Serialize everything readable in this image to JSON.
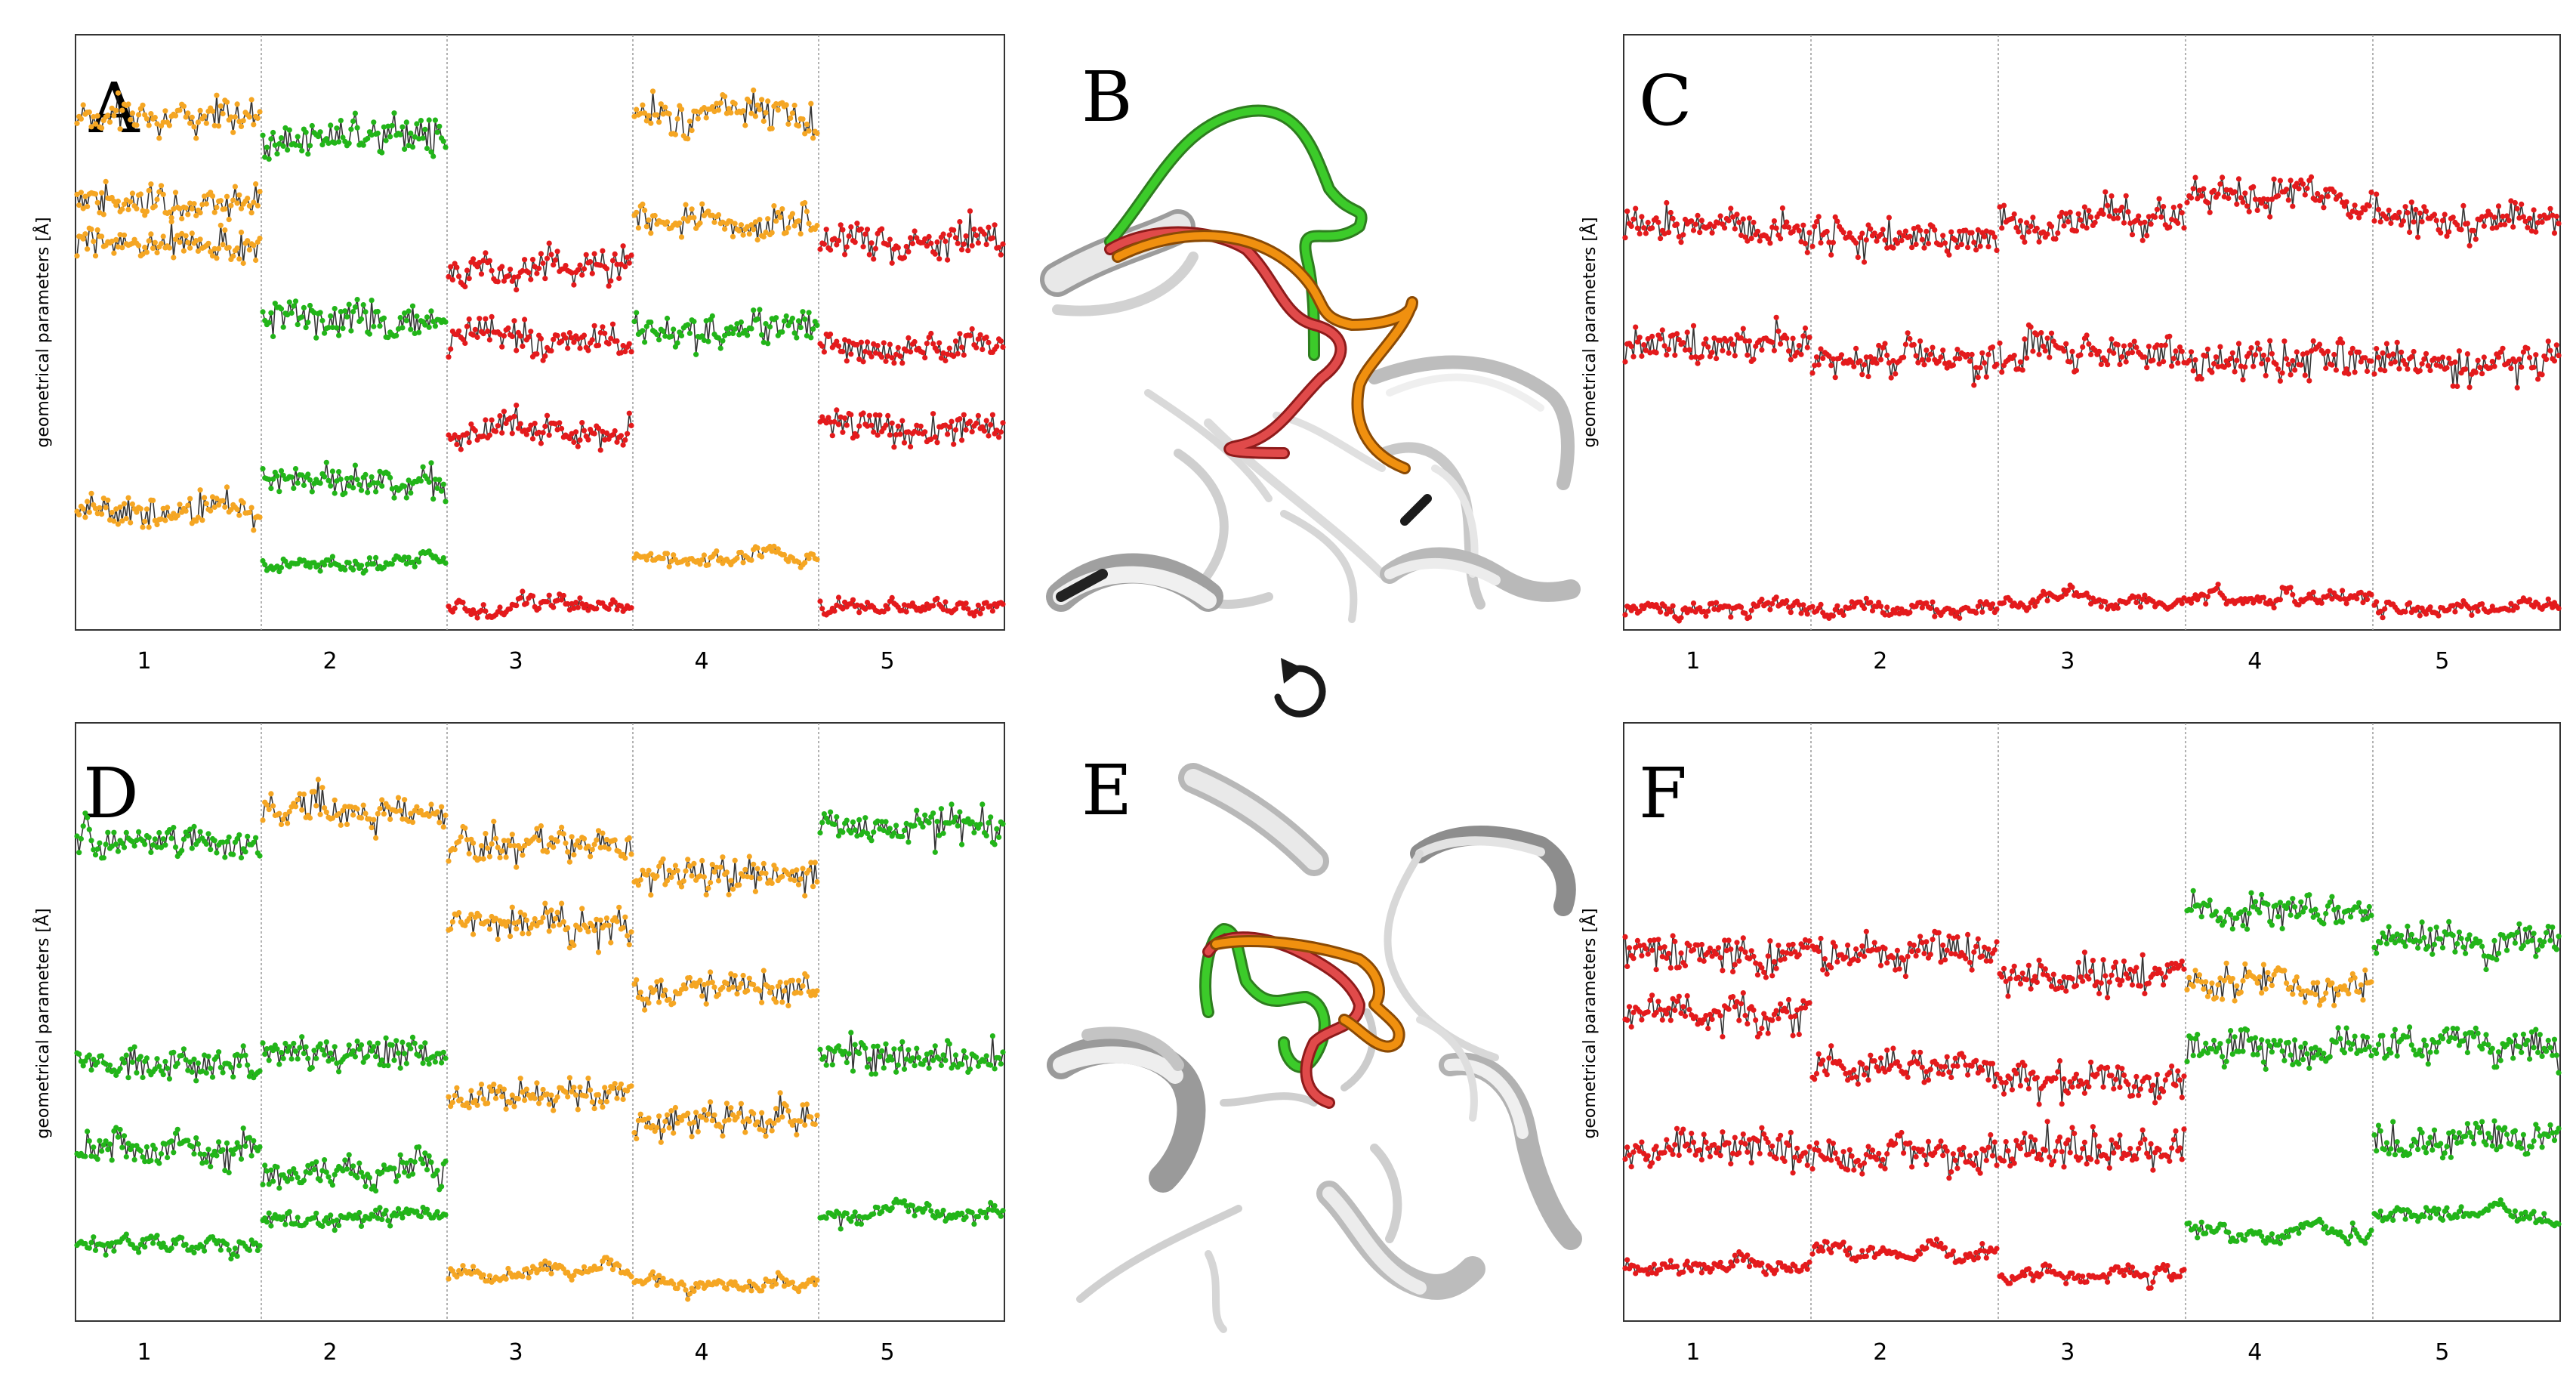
{
  "figure": {
    "panel_letters": [
      "A",
      "B",
      "C",
      "D",
      "E",
      "F"
    ],
    "rotate_icon": "rotate-clockwise-icon",
    "colors": {
      "red": "#e41a1c",
      "green": "#22b519",
      "orange": "#f5a623",
      "black": "#111111",
      "frame": "#333333",
      "separator": "#999999"
    }
  },
  "chart_data": [
    {
      "panel": "A",
      "type": "scatter",
      "ylabel": "geometrical parameters [Å]",
      "xlabel": "",
      "categories": [
        "1",
        "2",
        "3",
        "4",
        "5"
      ],
      "grid": false,
      "segments": [
        {
          "tick": "1",
          "x": [
            0,
            1
          ],
          "tracks": [
            {
              "y": 6.9,
              "color": "orange"
            },
            {
              "y": 5.8,
              "color": "orange"
            },
            {
              "y": 5.2,
              "color": "orange"
            },
            {
              "y": 1.6,
              "color": "orange"
            }
          ]
        },
        {
          "tick": "2",
          "x": [
            1,
            2
          ],
          "tracks": [
            {
              "y": 6.6,
              "color": "green"
            },
            {
              "y": 4.2,
              "color": "green"
            },
            {
              "y": 2.0,
              "color": "green"
            },
            {
              "y": 0.9,
              "color": "green"
            }
          ]
        },
        {
          "tick": "3",
          "x": [
            2,
            3
          ],
          "tracks": [
            {
              "y": 4.9,
              "color": "red"
            },
            {
              "y": 3.9,
              "color": "red"
            },
            {
              "y": 2.7,
              "color": "red"
            },
            {
              "y": 0.3,
              "color": "red"
            }
          ]
        },
        {
          "tick": "4",
          "x": [
            3,
            4
          ],
          "tracks": [
            {
              "y": 6.9,
              "color": "orange"
            },
            {
              "y": 5.5,
              "color": "orange"
            },
            {
              "y": 4.0,
              "color": "green"
            },
            {
              "y": 1.0,
              "color": "orange"
            }
          ]
        },
        {
          "tick": "5",
          "x": [
            4,
            5
          ],
          "tracks": [
            {
              "y": 5.3,
              "color": "red"
            },
            {
              "y": 3.8,
              "color": "red"
            },
            {
              "y": 2.7,
              "color": "red"
            },
            {
              "y": 0.3,
              "color": "red"
            }
          ]
        }
      ],
      "ylim": [
        0,
        8
      ]
    },
    {
      "panel": "C",
      "type": "scatter",
      "ylabel": "geometrical parameters [Å]",
      "xlabel": "",
      "categories": [
        "1",
        "2",
        "3",
        "4",
        "5"
      ],
      "grid": false,
      "segments": [
        {
          "tick": "1",
          "x": [
            0,
            1
          ],
          "tracks": [
            {
              "y": 5.4,
              "color": "red"
            },
            {
              "y": 3.8,
              "color": "red"
            },
            {
              "y": 0.3,
              "color": "red"
            }
          ]
        },
        {
          "tick": "2",
          "x": [
            1,
            2
          ],
          "tracks": [
            {
              "y": 5.3,
              "color": "red"
            },
            {
              "y": 3.7,
              "color": "red"
            },
            {
              "y": 0.3,
              "color": "red"
            }
          ]
        },
        {
          "tick": "3",
          "x": [
            2,
            3
          ],
          "tracks": [
            {
              "y": 5.5,
              "color": "red"
            },
            {
              "y": 3.7,
              "color": "red"
            },
            {
              "y": 0.35,
              "color": "red"
            }
          ]
        },
        {
          "tick": "4",
          "x": [
            3,
            4
          ],
          "tracks": [
            {
              "y": 5.8,
              "color": "red"
            },
            {
              "y": 3.6,
              "color": "red"
            },
            {
              "y": 0.4,
              "color": "red"
            }
          ]
        },
        {
          "tick": "5",
          "x": [
            4,
            5
          ],
          "tracks": [
            {
              "y": 5.5,
              "color": "red"
            },
            {
              "y": 3.6,
              "color": "red"
            },
            {
              "y": 0.3,
              "color": "red"
            }
          ]
        }
      ],
      "ylim": [
        0,
        8
      ]
    },
    {
      "panel": "D",
      "type": "scatter",
      "ylabel": "geometrical parameters [Å]",
      "xlabel": "",
      "categories": [
        "1",
        "2",
        "3",
        "4",
        "5"
      ],
      "grid": false,
      "segments": [
        {
          "tick": "1",
          "x": [
            0,
            1
          ],
          "tracks": [
            {
              "y": 6.4,
              "color": "green"
            },
            {
              "y": 3.4,
              "color": "green"
            },
            {
              "y": 2.3,
              "color": "green"
            },
            {
              "y": 1.0,
              "color": "green"
            }
          ]
        },
        {
          "tick": "2",
          "x": [
            1,
            2
          ],
          "tracks": [
            {
              "y": 6.8,
              "color": "orange"
            },
            {
              "y": 3.6,
              "color": "green"
            },
            {
              "y": 2.0,
              "color": "green"
            },
            {
              "y": 1.4,
              "color": "green"
            }
          ]
        },
        {
          "tick": "3",
          "x": [
            2,
            3
          ],
          "tracks": [
            {
              "y": 6.3,
              "color": "orange"
            },
            {
              "y": 5.3,
              "color": "orange"
            },
            {
              "y": 3.0,
              "color": "orange"
            },
            {
              "y": 0.6,
              "color": "orange"
            }
          ]
        },
        {
          "tick": "4",
          "x": [
            3,
            4
          ],
          "tracks": [
            {
              "y": 6.0,
              "color": "orange"
            },
            {
              "y": 4.4,
              "color": "orange"
            },
            {
              "y": 2.7,
              "color": "orange"
            },
            {
              "y": 0.5,
              "color": "orange"
            }
          ]
        },
        {
          "tick": "5",
          "x": [
            4,
            5
          ],
          "tracks": [
            {
              "y": 6.6,
              "color": "green"
            },
            {
              "y": 3.5,
              "color": "green"
            },
            {
              "y": 1.4,
              "color": "green"
            }
          ]
        }
      ],
      "ylim": [
        0,
        8
      ]
    },
    {
      "panel": "F",
      "type": "scatter",
      "ylabel": "geometrical parameters [Å]",
      "xlabel": "",
      "categories": [
        "1",
        "2",
        "3",
        "4",
        "5"
      ],
      "grid": false,
      "segments": [
        {
          "tick": "1",
          "x": [
            0,
            1
          ],
          "tracks": [
            {
              "y": 4.9,
              "color": "red"
            },
            {
              "y": 4.1,
              "color": "red"
            },
            {
              "y": 2.3,
              "color": "red"
            },
            {
              "y": 0.7,
              "color": "red"
            }
          ]
        },
        {
          "tick": "2",
          "x": [
            1,
            2
          ],
          "tracks": [
            {
              "y": 4.9,
              "color": "red"
            },
            {
              "y": 3.4,
              "color": "red"
            },
            {
              "y": 2.2,
              "color": "red"
            },
            {
              "y": 0.9,
              "color": "red"
            }
          ]
        },
        {
          "tick": "3",
          "x": [
            2,
            3
          ],
          "tracks": [
            {
              "y": 4.6,
              "color": "red"
            },
            {
              "y": 3.2,
              "color": "red"
            },
            {
              "y": 2.3,
              "color": "red"
            },
            {
              "y": 0.6,
              "color": "red"
            }
          ]
        },
        {
          "tick": "4",
          "x": [
            3,
            4
          ],
          "tracks": [
            {
              "y": 5.5,
              "color": "green"
            },
            {
              "y": 4.5,
              "color": "orange"
            },
            {
              "y": 3.6,
              "color": "green"
            },
            {
              "y": 1.2,
              "color": "green"
            }
          ]
        },
        {
          "tick": "5",
          "x": [
            4,
            5
          ],
          "tracks": [
            {
              "y": 5.1,
              "color": "green"
            },
            {
              "y": 3.7,
              "color": "green"
            },
            {
              "y": 2.4,
              "color": "green"
            },
            {
              "y": 1.4,
              "color": "green"
            }
          ]
        }
      ],
      "ylim": [
        0,
        8
      ]
    }
  ]
}
